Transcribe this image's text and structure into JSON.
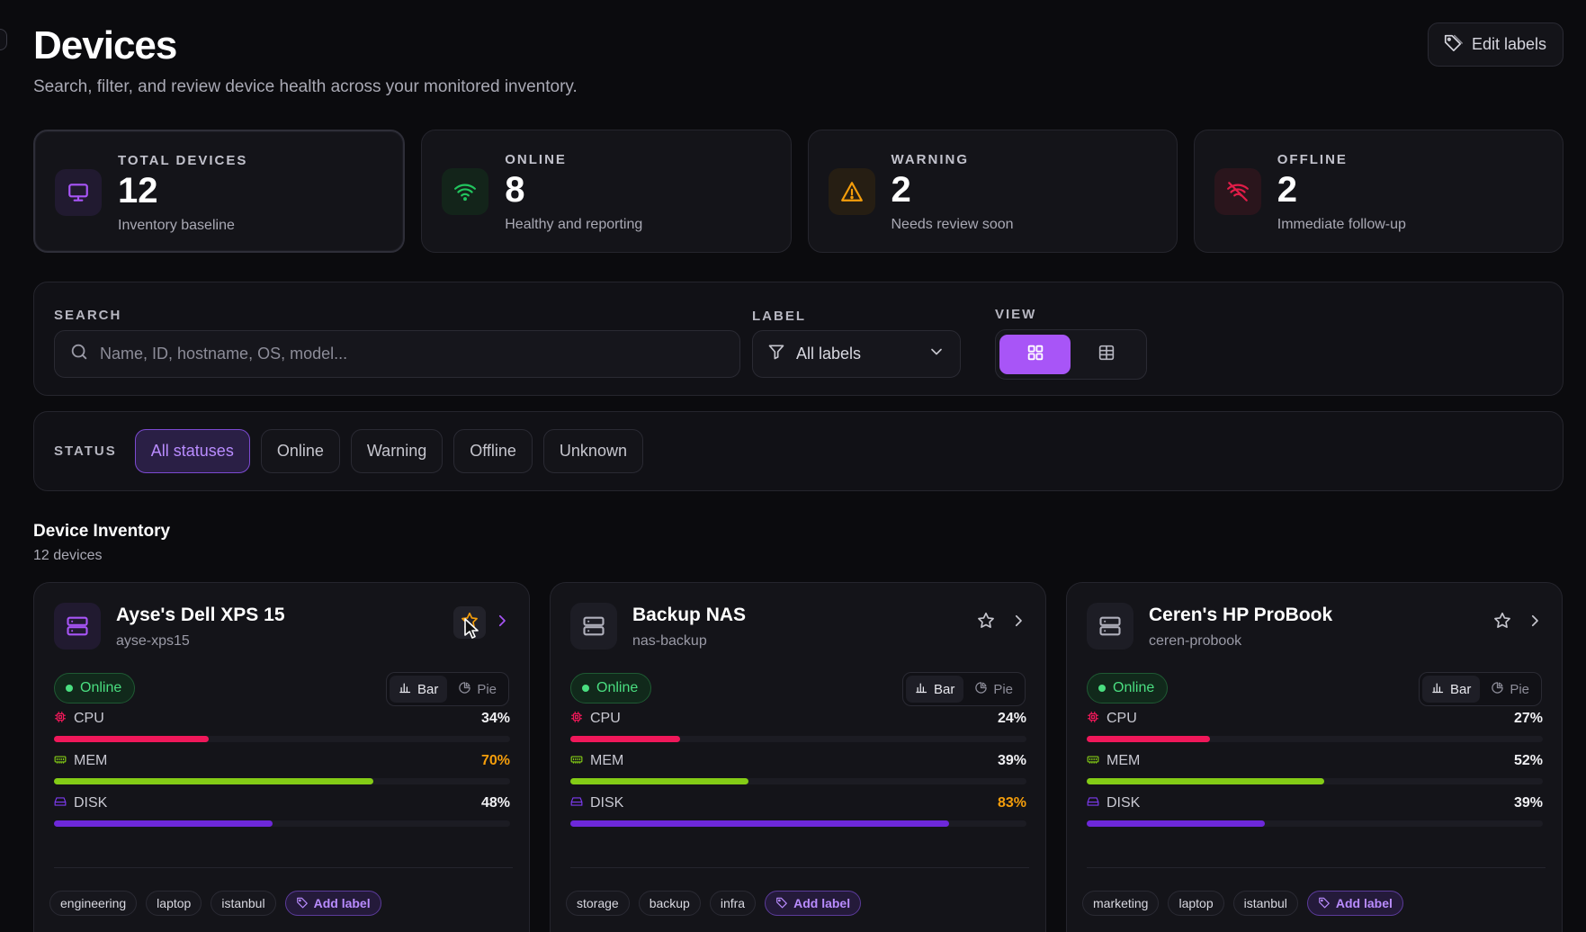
{
  "header": {
    "title": "Devices",
    "subtitle": "Search, filter, and review device health across your monitored inventory.",
    "edit_labels": "Edit labels"
  },
  "stats": [
    {
      "label": "TOTAL DEVICES",
      "value": "12",
      "desc": "Inventory baseline",
      "icon": "monitor-icon",
      "color": "#a855f7"
    },
    {
      "label": "ONLINE",
      "value": "8",
      "desc": "Healthy and reporting",
      "icon": "wifi-icon",
      "color": "#22c55e"
    },
    {
      "label": "WARNING",
      "value": "2",
      "desc": "Needs review soon",
      "icon": "warning-icon",
      "color": "#f59e0b"
    },
    {
      "label": "OFFLINE",
      "value": "2",
      "desc": "Immediate follow-up",
      "icon": "wifi-off-icon",
      "color": "#e11d48"
    }
  ],
  "filters": {
    "search_label": "SEARCH",
    "search_placeholder": "Name, ID, hostname, OS, model...",
    "search_value": "",
    "label_label": "LABEL",
    "label_selected": "All labels",
    "view_label": "VIEW",
    "view_selected": "grid"
  },
  "status_filter": {
    "label": "STATUS",
    "options": [
      "All statuses",
      "Online",
      "Warning",
      "Offline",
      "Unknown"
    ],
    "selected": "All statuses"
  },
  "inventory": {
    "title": "Device Inventory",
    "count": "12 devices"
  },
  "colors": {
    "accent": "#a855f7",
    "cpu": "#f0185a",
    "mem": "#84cc16",
    "disk": "#6d28d9",
    "warn": "#f59e0b",
    "online": "#4ade80"
  },
  "cards": [
    {
      "name": "Ayse's Dell XPS 15",
      "host": "ayse-xps15",
      "status": "Online",
      "chart_bar": "Bar",
      "chart_pie": "Pie",
      "starred_hover": true,
      "metrics": [
        {
          "name": "CPU",
          "pct": "34%",
          "value": 34,
          "warn": false
        },
        {
          "name": "MEM",
          "pct": "70%",
          "value": 70,
          "warn": true
        },
        {
          "name": "DISK",
          "pct": "48%",
          "value": 48,
          "warn": false
        }
      ],
      "tags": [
        "engineering",
        "laptop",
        "istanbul"
      ],
      "add_label": "Add label"
    },
    {
      "name": "Backup NAS",
      "host": "nas-backup",
      "status": "Online",
      "chart_bar": "Bar",
      "chart_pie": "Pie",
      "starred_hover": false,
      "metrics": [
        {
          "name": "CPU",
          "pct": "24%",
          "value": 24,
          "warn": false
        },
        {
          "name": "MEM",
          "pct": "39%",
          "value": 39,
          "warn": false
        },
        {
          "name": "DISK",
          "pct": "83%",
          "value": 83,
          "warn": true
        }
      ],
      "tags": [
        "storage",
        "backup",
        "infra"
      ],
      "add_label": "Add label"
    },
    {
      "name": "Ceren's HP ProBook",
      "host": "ceren-probook",
      "status": "Online",
      "chart_bar": "Bar",
      "chart_pie": "Pie",
      "starred_hover": false,
      "metrics": [
        {
          "name": "CPU",
          "pct": "27%",
          "value": 27,
          "warn": false
        },
        {
          "name": "MEM",
          "pct": "52%",
          "value": 52,
          "warn": false
        },
        {
          "name": "DISK",
          "pct": "39%",
          "value": 39,
          "warn": false
        }
      ],
      "tags": [
        "marketing",
        "laptop",
        "istanbul"
      ],
      "add_label": "Add label"
    }
  ]
}
